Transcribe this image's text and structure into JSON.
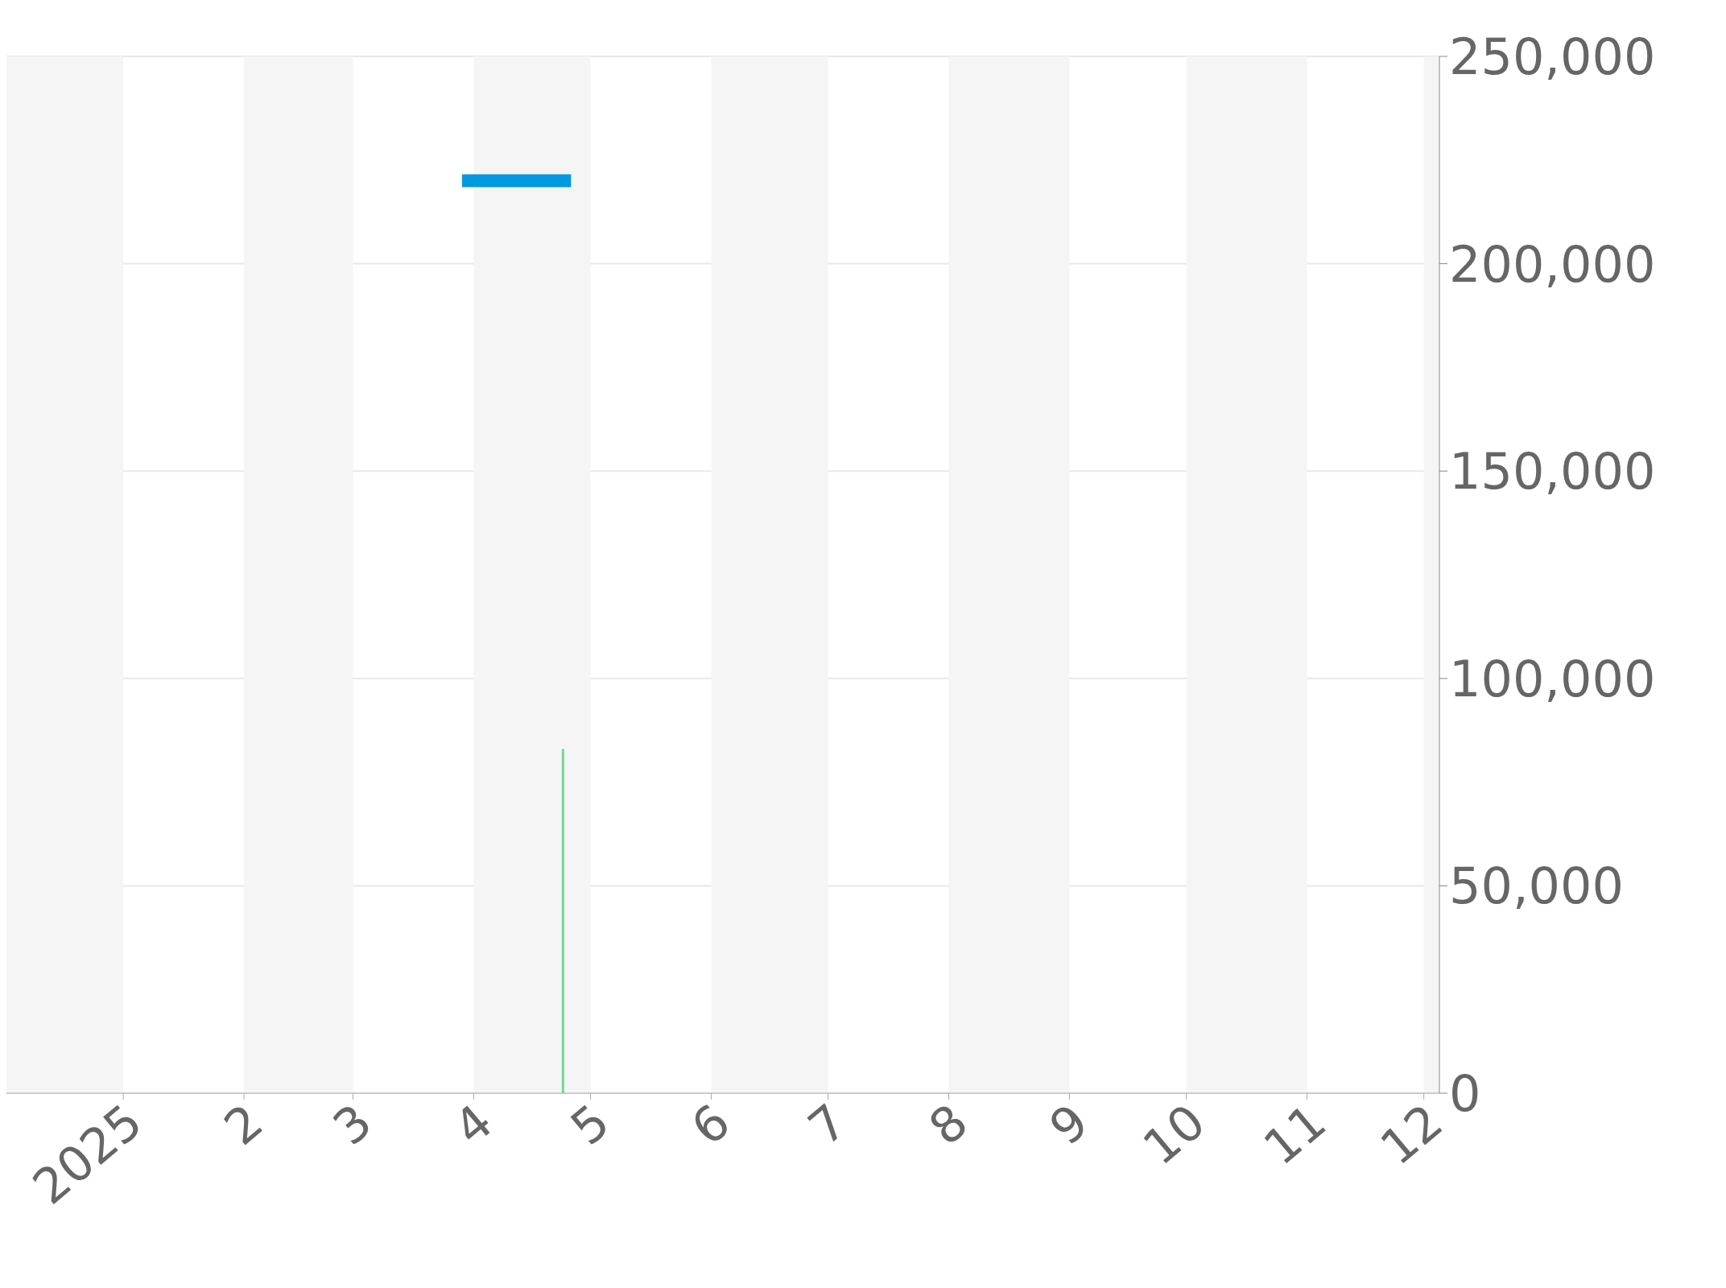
{
  "chart_data": {
    "type": "line",
    "xlim": [
      "2024-12-02",
      "2025-12-05"
    ],
    "xticks": [
      {
        "value": "2025-01-01",
        "label": "2025"
      },
      {
        "value": "2025-02-01",
        "label": "2"
      },
      {
        "value": "2025-03-01",
        "label": "3"
      },
      {
        "value": "2025-04-01",
        "label": "4"
      },
      {
        "value": "2025-05-01",
        "label": "5"
      },
      {
        "value": "2025-06-01",
        "label": "6"
      },
      {
        "value": "2025-07-01",
        "label": "7"
      },
      {
        "value": "2025-08-01",
        "label": "8"
      },
      {
        "value": "2025-09-01",
        "label": "9"
      },
      {
        "value": "2025-10-01",
        "label": "10"
      },
      {
        "value": "2025-11-01",
        "label": "11"
      },
      {
        "value": "2025-12-01",
        "label": "12"
      }
    ],
    "ylim": [
      0,
      250000
    ],
    "yticks": [
      0,
      {
        "value": 50000,
        "label": "50,000"
      },
      {
        "value": 100000,
        "label": "100,000"
      },
      {
        "value": 150000,
        "label": "150,000"
      },
      {
        "value": 200000,
        "label": "200,000"
      },
      {
        "value": 250000,
        "label": "250,000"
      }
    ],
    "grid": "y",
    "legend": false,
    "marker": "none",
    "bands": [
      {
        "axis": "x",
        "from": "2024-12-02",
        "to": "2025-01-01",
        "color": "#f5f5f5"
      },
      {
        "axis": "x",
        "from": "2025-02-01",
        "to": "2025-03-01",
        "color": "#f5f5f5"
      },
      {
        "axis": "x",
        "from": "2025-04-01",
        "to": "2025-05-01",
        "color": "#f5f5f5"
      },
      {
        "axis": "x",
        "from": "2025-06-01",
        "to": "2025-07-01",
        "color": "#f5f5f5"
      },
      {
        "axis": "x",
        "from": "2025-08-01",
        "to": "2025-09-01",
        "color": "#f5f5f5"
      },
      {
        "axis": "x",
        "from": "2025-10-01",
        "to": "2025-11-01",
        "color": "#f5f5f5"
      },
      {
        "axis": "x",
        "from": "2025-12-01",
        "to": "2025-12-05",
        "color": "#f5f5f5"
      }
    ],
    "series": [
      {
        "color": "#0099e0",
        "x": [
          "2025-03-29",
          "2025-04-26"
        ],
        "values": [
          220000,
          220000
        ]
      },
      {
        "type": "bar",
        "color": "#77d495",
        "x": [
          "2025-04-24"
        ],
        "values": [
          83000
        ]
      }
    ]
  }
}
